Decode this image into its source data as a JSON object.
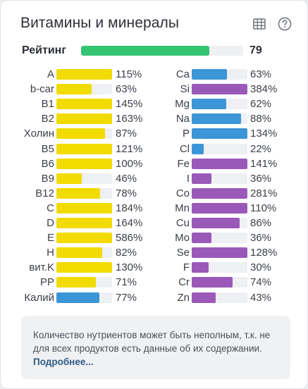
{
  "widget": {
    "title": "Витамины и минералы",
    "table_icon": "table-icon",
    "help_icon": "help-circle-icon"
  },
  "rating": {
    "label": "Рейтинг",
    "value": "79",
    "fill_fraction": 0.79,
    "color": "#34c472"
  },
  "colors": {
    "vitamin": "#f2db00",
    "mineral_macro": "#3b95d6",
    "mineral_micro": "#9a59b8",
    "track": "#eef0f3"
  },
  "left_column": [
    {
      "name": "A",
      "pct": "115%",
      "color": "#f2db00",
      "level": 1.0
    },
    {
      "name": "b-car",
      "pct": "63%",
      "color": "#f2db00",
      "level": 0.63
    },
    {
      "name": "B1",
      "pct": "145%",
      "color": "#f2db00",
      "level": 1.0
    },
    {
      "name": "B2",
      "pct": "163%",
      "color": "#f2db00",
      "level": 1.0
    },
    {
      "name": "Холин",
      "pct": "87%",
      "color": "#f2db00",
      "level": 0.87
    },
    {
      "name": "B5",
      "pct": "121%",
      "color": "#f2db00",
      "level": 1.0
    },
    {
      "name": "B6",
      "pct": "100%",
      "color": "#f2db00",
      "level": 1.0
    },
    {
      "name": "B9",
      "pct": "46%",
      "color": "#f2db00",
      "level": 0.46
    },
    {
      "name": "B12",
      "pct": "78%",
      "color": "#f2db00",
      "level": 0.78
    },
    {
      "name": "C",
      "pct": "184%",
      "color": "#f2db00",
      "level": 1.0
    },
    {
      "name": "D",
      "pct": "164%",
      "color": "#f2db00",
      "level": 1.0
    },
    {
      "name": "E",
      "pct": "586%",
      "color": "#f2db00",
      "level": 1.0
    },
    {
      "name": "H",
      "pct": "82%",
      "color": "#f2db00",
      "level": 0.82
    },
    {
      "name": "вит.K",
      "pct": "130%",
      "color": "#f2db00",
      "level": 1.0
    },
    {
      "name": "PP",
      "pct": "71%",
      "color": "#f2db00",
      "level": 0.71
    },
    {
      "name": "Калий",
      "pct": "77%",
      "color": "#3b95d6",
      "level": 0.77
    }
  ],
  "right_column": [
    {
      "name": "Ca",
      "pct": "63%",
      "color": "#3b95d6",
      "level": 0.63
    },
    {
      "name": "Si",
      "pct": "384%",
      "color": "#9a59b8",
      "level": 1.0
    },
    {
      "name": "Mg",
      "pct": "62%",
      "color": "#3b95d6",
      "level": 0.62
    },
    {
      "name": "Na",
      "pct": "88%",
      "color": "#3b95d6",
      "level": 0.88
    },
    {
      "name": "P",
      "pct": "134%",
      "color": "#3b95d6",
      "level": 1.0
    },
    {
      "name": "Cl",
      "pct": "22%",
      "color": "#3b95d6",
      "level": 0.22
    },
    {
      "name": "Fe",
      "pct": "141%",
      "color": "#9a59b8",
      "level": 1.0
    },
    {
      "name": "I",
      "pct": "36%",
      "color": "#9a59b8",
      "level": 0.36
    },
    {
      "name": "Co",
      "pct": "281%",
      "color": "#9a59b8",
      "level": 1.0
    },
    {
      "name": "Mn",
      "pct": "110%",
      "color": "#9a59b8",
      "level": 1.0
    },
    {
      "name": "Cu",
      "pct": "86%",
      "color": "#9a59b8",
      "level": 0.86
    },
    {
      "name": "Mo",
      "pct": "36%",
      "color": "#9a59b8",
      "level": 0.36
    },
    {
      "name": "Se",
      "pct": "128%",
      "color": "#9a59b8",
      "level": 1.0
    },
    {
      "name": "F",
      "pct": "30%",
      "color": "#9a59b8",
      "level": 0.3
    },
    {
      "name": "Cr",
      "pct": "74%",
      "color": "#9a59b8",
      "level": 0.74
    },
    {
      "name": "Zn",
      "pct": "43%",
      "color": "#9a59b8",
      "level": 0.43
    }
  ],
  "note": {
    "text": "Количество нутриентов может быть неполным, т.к. не для всех продуктов есть данные об их содержании.",
    "link": "Подробнее..."
  }
}
